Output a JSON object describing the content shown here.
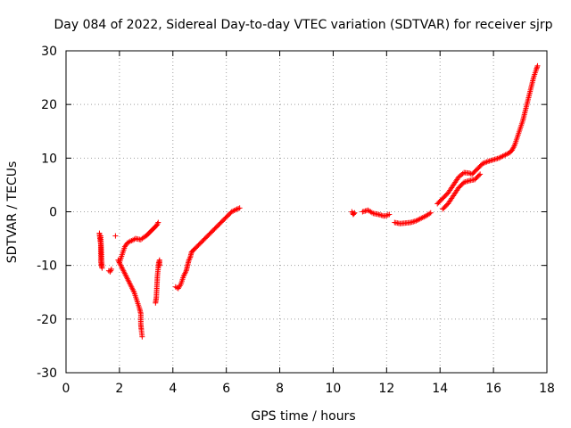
{
  "chart_data": {
    "type": "scatter",
    "title": "Day 084 of 2022, Sidereal Day-to-day VTEC variation (SDTVAR) for receiver sjrp",
    "xlabel": "GPS time / hours",
    "ylabel": "SDTVAR / TECUs",
    "xlim": [
      0,
      18
    ],
    "ylim": [
      -30,
      30
    ],
    "x_ticks": [
      0,
      2,
      4,
      6,
      8,
      10,
      12,
      14,
      16,
      18
    ],
    "y_ticks": [
      -30,
      -20,
      -10,
      0,
      10,
      20,
      30
    ],
    "grid": true,
    "marker": "+",
    "series": [
      {
        "name": "SDTVAR",
        "color": "#ff0000",
        "segments": [
          [
            [
              1.25,
              -4
            ],
            [
              1.27,
              -5
            ],
            [
              1.3,
              -6
            ],
            [
              1.3,
              -9
            ],
            [
              1.32,
              -10
            ],
            [
              1.35,
              -10.5
            ],
            [
              1.3,
              -4.5
            ]
          ],
          [
            [
              1.6,
              -11
            ],
            [
              1.65,
              -11.2
            ],
            [
              1.7,
              -10.7
            ]
          ],
          [
            [
              1.85,
              -4.5
            ]
          ],
          [
            [
              1.95,
              -9
            ],
            [
              2.05,
              -10
            ],
            [
              2.15,
              -11
            ],
            [
              2.25,
              -12
            ],
            [
              2.35,
              -13
            ],
            [
              2.45,
              -14
            ],
            [
              2.55,
              -15
            ],
            [
              2.65,
              -16.5
            ],
            [
              2.75,
              -18
            ],
            [
              2.8,
              -19
            ],
            [
              2.8,
              -21
            ],
            [
              2.82,
              -22
            ],
            [
              2.85,
              -23.3
            ]
          ],
          [
            [
              2.0,
              -9.5
            ],
            [
              2.1,
              -8
            ],
            [
              2.2,
              -6.5
            ],
            [
              2.3,
              -5.8
            ],
            [
              2.4,
              -5.5
            ],
            [
              2.5,
              -5.3
            ],
            [
              2.6,
              -5
            ],
            [
              2.7,
              -5.1
            ],
            [
              2.8,
              -5.2
            ],
            [
              2.9,
              -4.8
            ],
            [
              3.0,
              -4.5
            ],
            [
              3.1,
              -4
            ],
            [
              3.2,
              -3.5
            ],
            [
              3.3,
              -3
            ],
            [
              3.4,
              -2.5
            ],
            [
              3.45,
              -2
            ]
          ],
          [
            [
              3.35,
              -17
            ],
            [
              3.38,
              -16
            ],
            [
              3.4,
              -14
            ],
            [
              3.42,
              -12
            ],
            [
              3.45,
              -10.5
            ],
            [
              3.47,
              -9.5
            ],
            [
              3.5,
              -9
            ],
            [
              3.5,
              -10
            ]
          ],
          [
            [
              4.1,
              -14
            ],
            [
              4.2,
              -14.3
            ],
            [
              4.3,
              -13.5
            ],
            [
              4.4,
              -12
            ],
            [
              4.5,
              -11
            ],
            [
              4.55,
              -10
            ],
            [
              4.6,
              -9
            ],
            [
              4.65,
              -8.5
            ],
            [
              4.7,
              -7.5
            ],
            [
              4.8,
              -7
            ],
            [
              5.0,
              -6
            ],
            [
              5.2,
              -5
            ],
            [
              5.4,
              -4
            ],
            [
              5.6,
              -3
            ],
            [
              5.8,
              -2
            ],
            [
              6.0,
              -1
            ],
            [
              6.2,
              0
            ],
            [
              6.4,
              0.5
            ],
            [
              6.5,
              0.7
            ]
          ],
          [
            [
              10.7,
              0
            ],
            [
              10.75,
              -0.5
            ],
            [
              10.8,
              -0.2
            ]
          ],
          [
            [
              11.1,
              0
            ],
            [
              11.3,
              0.3
            ],
            [
              11.5,
              -0.3
            ],
            [
              11.7,
              -0.5
            ],
            [
              11.9,
              -0.8
            ],
            [
              12.0,
              -0.7
            ],
            [
              12.1,
              -0.5
            ]
          ],
          [
            [
              12.3,
              -2
            ],
            [
              12.5,
              -2.2
            ],
            [
              12.7,
              -2.1
            ],
            [
              12.9,
              -2
            ],
            [
              13.1,
              -1.7
            ],
            [
              13.3,
              -1.2
            ],
            [
              13.5,
              -0.7
            ],
            [
              13.65,
              -0.2
            ]
          ],
          [
            [
              13.9,
              1.5
            ],
            [
              14.1,
              2.5
            ],
            [
              14.3,
              3.5
            ],
            [
              14.5,
              5
            ],
            [
              14.7,
              6.5
            ],
            [
              14.9,
              7.3
            ],
            [
              15.1,
              7.2
            ],
            [
              15.2,
              7
            ],
            [
              15.4,
              8
            ],
            [
              15.6,
              9
            ],
            [
              15.8,
              9.4
            ],
            [
              16.0,
              9.7
            ],
            [
              16.2,
              10
            ],
            [
              16.4,
              10.5
            ],
            [
              16.6,
              11
            ],
            [
              16.7,
              11.5
            ],
            [
              16.8,
              12.5
            ],
            [
              16.9,
              14
            ],
            [
              17.0,
              15.5
            ],
            [
              17.1,
              17
            ],
            [
              17.2,
              19
            ],
            [
              17.3,
              21
            ],
            [
              17.4,
              23
            ],
            [
              17.5,
              25
            ],
            [
              17.6,
              26.5
            ],
            [
              17.65,
              27.2
            ]
          ],
          [
            [
              14.1,
              0.5
            ],
            [
              14.3,
              1.5
            ],
            [
              14.5,
              3
            ],
            [
              14.7,
              4.5
            ],
            [
              14.9,
              5.5
            ],
            [
              15.1,
              5.8
            ],
            [
              15.3,
              6
            ],
            [
              15.5,
              7
            ]
          ]
        ]
      }
    ]
  }
}
